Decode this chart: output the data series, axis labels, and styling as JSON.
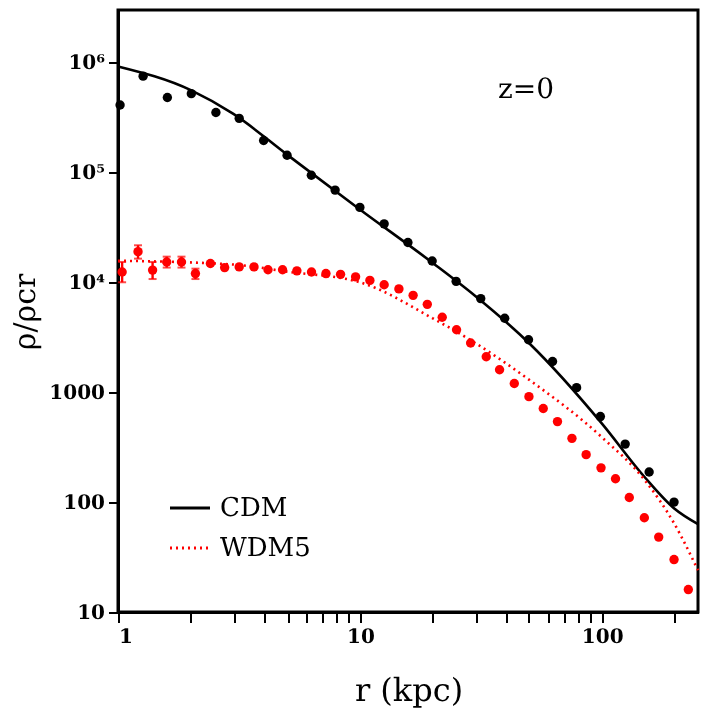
{
  "chart_data": {
    "type": "scatter",
    "xlabel": "r (kpc)",
    "ylabel": "ρ/ρcr",
    "log": "xy",
    "grid": false,
    "legend": "bottom left",
    "annotations": [
      "z=0"
    ],
    "xlim": [
      1,
      250
    ],
    "ylim": [
      10,
      3000000
    ],
    "xticks": [
      1,
      {
        "value": 2,
        "label": null
      },
      {
        "value": 3,
        "label": null
      },
      {
        "value": 4,
        "label": null
      },
      {
        "value": 5,
        "label": null
      },
      {
        "value": 6,
        "label": null
      },
      {
        "value": 7,
        "label": null
      },
      {
        "value": 8,
        "label": null
      },
      {
        "value": 9,
        "label": null
      },
      10,
      {
        "value": 20,
        "label": null
      },
      {
        "value": 30,
        "label": null
      },
      {
        "value": 40,
        "label": null
      },
      {
        "value": 50,
        "label": null
      },
      {
        "value": 60,
        "label": null
      },
      {
        "value": 70,
        "label": null
      },
      {
        "value": 80,
        "label": null
      },
      {
        "value": 90,
        "label": null
      },
      100,
      {
        "value": 200,
        "label": null
      }
    ],
    "yticks": [
      10,
      100,
      1000,
      {
        "value": 10000,
        "label": "10⁴"
      },
      {
        "value": 100000,
        "label": "10⁵"
      },
      {
        "value": 1000000,
        "label": "10⁶"
      }
    ],
    "series": [
      {
        "color": "#000000",
        "marker": "circle",
        "x": [
          1.02,
          1.27,
          1.6,
          2.01,
          2.54,
          3.17,
          4.0,
          5.0,
          6.3,
          7.9,
          10,
          12.6,
          15.8,
          19.9,
          25,
          31.6,
          39.7,
          49.8,
          62.6,
          78.7,
          98.7,
          125,
          157,
          199
        ],
        "values": [
          410000,
          750000,
          480000,
          520000,
          350000,
          310000,
          195000,
          143000,
          94000,
          69000,
          48000,
          34000,
          23000,
          15600,
          10200,
          7100,
          4700,
          3000,
          1900,
          1100,
          600,
          337,
          188,
          100
        ]
      },
      {
        "type": "line",
        "name": "CDM",
        "color": "#000000",
        "line_style": "solid",
        "marker": "none",
        "x": [
          1,
          2,
          3,
          5,
          10,
          20,
          30,
          50,
          100,
          150,
          200,
          250
        ],
        "values": [
          920000,
          560000,
          340000,
          145000,
          46000,
          15000,
          7500,
          2800,
          520,
          170,
          87,
          63
        ]
      },
      {
        "color": "#ff0000",
        "marker": "circle",
        "x": [
          1.04,
          1.21,
          1.39,
          1.59,
          1.83,
          2.09,
          2.41,
          2.76,
          3.17,
          3.65,
          4.17,
          4.79,
          5.49,
          6.31,
          7.24,
          8.32,
          9.6,
          11.0,
          12.6,
          14.5,
          16.6,
          19.0,
          21.9,
          25.1,
          28.7,
          33.3,
          37.8,
          43.5,
          50.0,
          57.3,
          65.6,
          75.3,
          86.2,
          99.3,
          114,
          130,
          150,
          172,
          199,
          228
        ],
        "values": [
          12400,
          19000,
          12900,
          15300,
          15300,
          12000,
          14800,
          13600,
          13800,
          13800,
          13000,
          13000,
          12700,
          12400,
          12000,
          11800,
          11200,
          10400,
          9500,
          8700,
          7600,
          6300,
          4800,
          3700,
          2800,
          2100,
          1600,
          1200,
          910,
          710,
          540,
          380,
          270,
          205,
          163,
          110,
          72,
          48,
          30,
          16
        ],
        "errors": [
          [
            10000,
            15300
          ],
          [
            16400,
            21700
          ],
          [
            10700,
            15300
          ],
          [
            13600,
            17100
          ],
          [
            13600,
            17100
          ],
          [
            10700,
            13300
          ],
          null,
          null,
          null,
          null,
          null,
          null,
          null,
          null,
          null,
          null,
          null,
          null,
          null,
          null,
          null,
          null,
          null,
          null,
          null,
          null,
          null,
          null,
          null,
          null,
          null,
          null,
          null,
          null,
          null,
          null,
          null,
          null,
          null,
          null
        ]
      },
      {
        "type": "line",
        "name": "WDM5",
        "color": "#ff0000",
        "line_style": "dotted",
        "marker": "none",
        "x": [
          1,
          3,
          5,
          10,
          20,
          30,
          50,
          100,
          150,
          200,
          250
        ],
        "values": [
          15700,
          14500,
          12500,
          10000,
          4700,
          2800,
          1300,
          390,
          160,
          63,
          24
        ]
      }
    ]
  }
}
